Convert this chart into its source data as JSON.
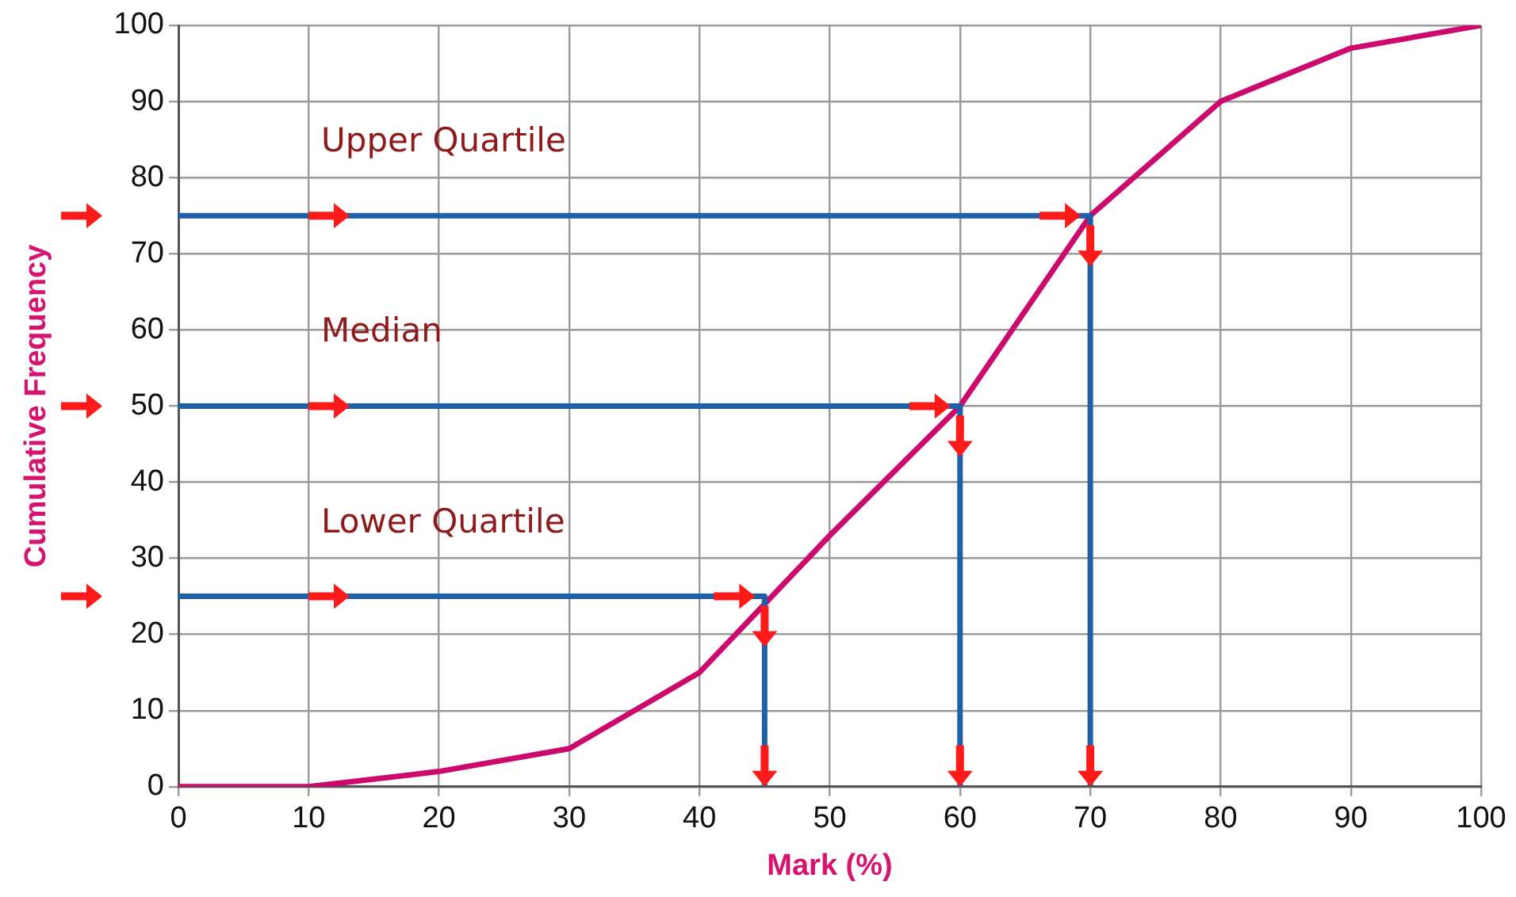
{
  "chart_data": {
    "type": "line",
    "xlabel": "Mark (%)",
    "ylabel": "Cumulative Frequency",
    "x": [
      0,
      10,
      20,
      30,
      40,
      50,
      60,
      70,
      80,
      90,
      100
    ],
    "series": [
      {
        "color": "#cc0a6e",
        "values": [
          0,
          0,
          2,
          5,
          15,
          33,
          50,
          75,
          90,
          97,
          100
        ]
      },
      {
        "color": "#1f5fa8",
        "x": [
          0,
          45,
          45
        ],
        "values": [
          25,
          25,
          0
        ]
      },
      {
        "color": "#1f5fa8",
        "x": [
          0,
          60,
          60
        ],
        "values": [
          50,
          50,
          0
        ]
      },
      {
        "color": "#1f5fa8",
        "x": [
          0,
          70,
          70
        ],
        "values": [
          75,
          75,
          0
        ]
      }
    ],
    "xlim": [
      0,
      100
    ],
    "xticks": [
      0,
      10,
      20,
      30,
      40,
      50,
      60,
      70,
      80,
      90,
      100
    ],
    "ylim": [
      0,
      100
    ],
    "yticks": [
      0,
      10,
      20,
      30,
      40,
      50,
      60,
      70,
      80,
      90,
      100
    ],
    "annotations": [
      "Upper Quartile",
      "Median",
      "Lower Quartile"
    ],
    "grid": true,
    "legend": false,
    "marker": "none",
    "line_style": "solid"
  }
}
